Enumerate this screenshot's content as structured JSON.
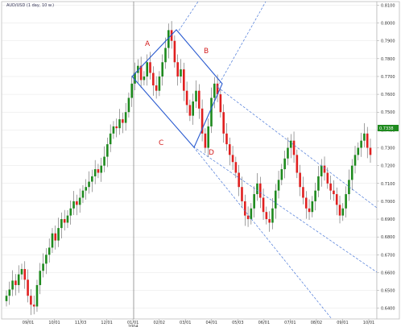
{
  "window": {
    "title": "AUD/USD (1 day, 10 w.)"
  },
  "colors": {
    "up": "#1e8a1e",
    "down": "#e02020",
    "wick": "#444444",
    "channel": "#4a78d8",
    "diamond": "#2a5bd0",
    "pattern_label": "#d42020",
    "price_tag": "#1e8a1e",
    "grid": "#dddddd",
    "axis": "#999999"
  },
  "chart_data": {
    "type": "candlestick",
    "title": "AUD/USD (1 day, 10 w.)",
    "x_tick_labels": [
      "09/01",
      "10/01",
      "11/03",
      "12/01",
      "01/01\n2004",
      "02/02",
      "03/01",
      "04/01",
      "05/03",
      "06/01",
      "07/01",
      "08/02",
      "09/01",
      "10/01"
    ],
    "y_tick_labels": [
      "0.6400",
      "0.6500",
      "0.6600",
      "0.6700",
      "0.6800",
      "0.6900",
      "0.7000",
      "0.7100",
      "0.7200",
      "0.7300",
      "0.7400",
      "0.7500",
      "0.7600",
      "0.7700",
      "0.7800",
      "0.7900",
      "0.8000",
      "0.8100"
    ],
    "ylim": [
      0.634,
      0.812
    ],
    "current_price": "0.7338",
    "year_divider_label": "01/01 2004",
    "pattern_labels": [
      "A",
      "B",
      "C",
      "D"
    ],
    "series_close": [
      0.647,
      0.6505,
      0.6555,
      0.653,
      0.659,
      0.662,
      0.656,
      0.647,
      0.642,
      0.641,
      0.653,
      0.661,
      0.665,
      0.67,
      0.674,
      0.682,
      0.678,
      0.685,
      0.69,
      0.688,
      0.692,
      0.696,
      0.7,
      0.698,
      0.702,
      0.706,
      0.708,
      0.711,
      0.714,
      0.718,
      0.716,
      0.72,
      0.725,
      0.732,
      0.738,
      0.742,
      0.741,
      0.746,
      0.744,
      0.75,
      0.758,
      0.766,
      0.772,
      0.776,
      0.768,
      0.77,
      0.778,
      0.772,
      0.765,
      0.762,
      0.77,
      0.778,
      0.786,
      0.796,
      0.79,
      0.778,
      0.77,
      0.774,
      0.762,
      0.754,
      0.748,
      0.756,
      0.762,
      0.752,
      0.738,
      0.73,
      0.742,
      0.758,
      0.766,
      0.76,
      0.75,
      0.738,
      0.732,
      0.726,
      0.722,
      0.716,
      0.708,
      0.7,
      0.692,
      0.69,
      0.696,
      0.704,
      0.71,
      0.702,
      0.694,
      0.69,
      0.688,
      0.696,
      0.706,
      0.712,
      0.718,
      0.724,
      0.73,
      0.734,
      0.726,
      0.716,
      0.708,
      0.702,
      0.696,
      0.694,
      0.7,
      0.706,
      0.714,
      0.72,
      0.716,
      0.71,
      0.706,
      0.704,
      0.698,
      0.692,
      0.696,
      0.704,
      0.712,
      0.72,
      0.726,
      0.73,
      0.734,
      0.738,
      0.73,
      0.726
    ]
  }
}
